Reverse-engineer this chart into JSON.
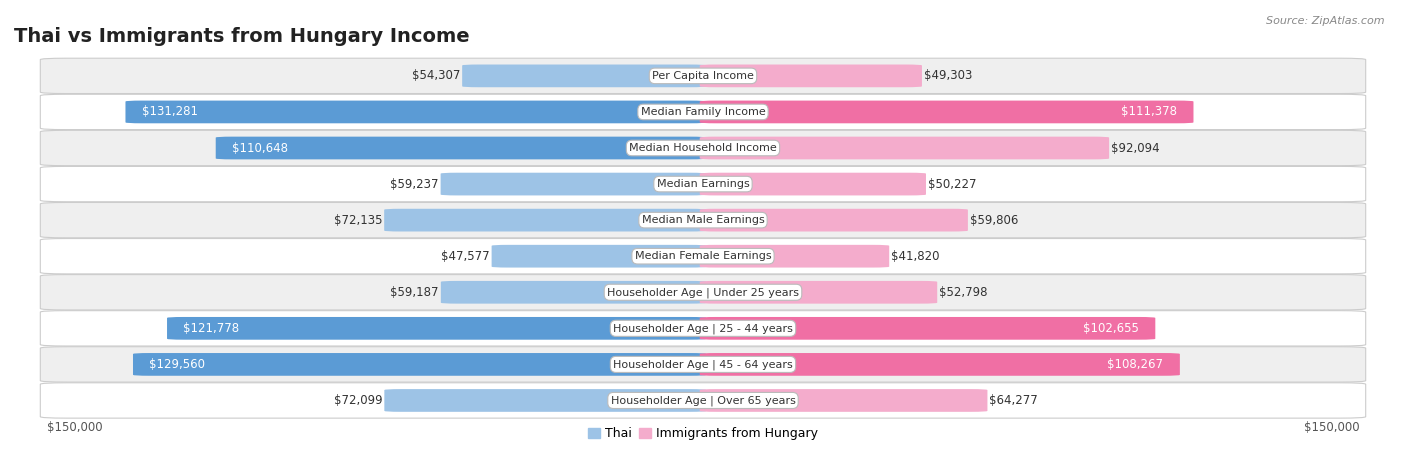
{
  "title": "Thai vs Immigrants from Hungary Income",
  "source": "Source: ZipAtlas.com",
  "max_value": 150000,
  "categories": [
    "Per Capita Income",
    "Median Family Income",
    "Median Household Income",
    "Median Earnings",
    "Median Male Earnings",
    "Median Female Earnings",
    "Householder Age | Under 25 years",
    "Householder Age | 25 - 44 years",
    "Householder Age | 45 - 64 years",
    "Householder Age | Over 65 years"
  ],
  "thai_values": [
    54307,
    131281,
    110648,
    59237,
    72135,
    47577,
    59187,
    121778,
    129560,
    72099
  ],
  "hungary_values": [
    49303,
    111378,
    92094,
    50227,
    59806,
    41820,
    52798,
    102655,
    108267,
    64277
  ],
  "thai_color_dark": "#5b9bd5",
  "thai_color_light": "#9dc3e6",
  "hungary_color_dark": "#f06fa4",
  "hungary_color_light": "#f4accc",
  "thai_label_threshold": 100000,
  "hungary_label_threshold": 100000,
  "bar_height": 0.62,
  "row_bg_color_odd": "#efefef",
  "row_bg_color_even": "#ffffff",
  "label_font_size": 8.5,
  "title_font_size": 14,
  "legend_label_thai": "Thai",
  "legend_label_hungary": "Immigrants from Hungary",
  "background_color": "#ffffff",
  "cat_label_font_size": 8.0
}
